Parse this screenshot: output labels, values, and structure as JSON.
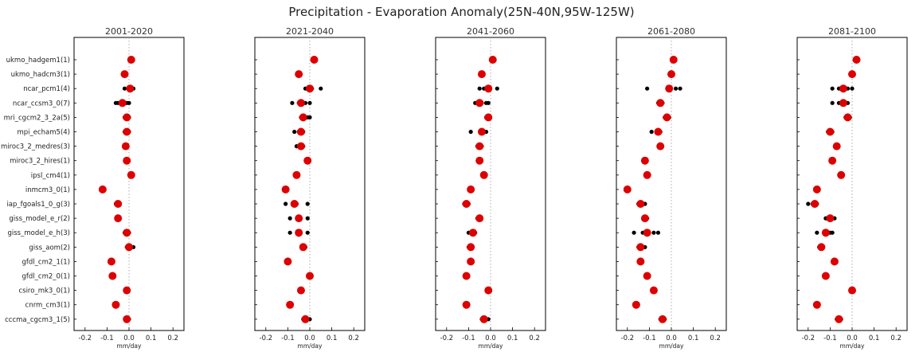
{
  "chart_data": {
    "type": "scatter",
    "title": "Precipitation - Evaporation Anomaly(25N-40N,95W-125W)",
    "xlabel": "mm/day",
    "xlim": [
      -0.25,
      0.25
    ],
    "xticks": [
      -0.2,
      -0.1,
      0.0,
      0.1,
      0.2
    ],
    "xtick_labels": [
      "-0.2",
      "-0.1",
      "0.0",
      "0.1",
      "0.2"
    ],
    "reference_line": 0,
    "models": [
      "ukmo_hadgem1(1)",
      "ukmo_hadcm3(1)",
      "ncar_pcm1(4)",
      "ncar_ccsm3_0(7)",
      "mri_cgcm2_3_2a(5)",
      "mpi_echam5(4)",
      "miroc3_2_medres(3)",
      "miroc3_2_hires(1)",
      "ipsl_cm4(1)",
      "inmcm3_0(1)",
      "iap_fgoals1_0_g(3)",
      "giss_model_e_r(2)",
      "giss_model_e_h(3)",
      "giss_aom(2)",
      "gfdl_cm2_1(1)",
      "gfdl_cm2_0(1)",
      "csiro_mk3_0(1)",
      "cnrm_cm3(1)",
      "cccma_cgcm3_1(5)"
    ],
    "colors": {
      "ensemble_mean": "#dd0000",
      "members": "#000000",
      "reference_line": "#999999"
    },
    "panels": [
      {
        "period": "2001-2020",
        "mean": [
          0.01,
          -0.02,
          0.005,
          -0.03,
          -0.01,
          -0.01,
          -0.015,
          -0.01,
          0.01,
          -0.12,
          -0.05,
          -0.05,
          -0.01,
          0.0,
          -0.08,
          -0.075,
          -0.01,
          -0.06,
          -0.01
        ],
        "members": [
          [],
          [],
          [
            -0.02,
            0.0,
            0.01,
            0.02
          ],
          [
            -0.06,
            -0.05,
            -0.04,
            -0.03,
            -0.02,
            -0.01,
            0.0
          ],
          [
            -0.02,
            -0.015,
            -0.01,
            -0.005,
            0.0
          ],
          [
            -0.02,
            -0.015,
            -0.01,
            0.0
          ],
          [
            -0.02,
            -0.015,
            -0.01
          ],
          [],
          [],
          [],
          [
            -0.06,
            -0.05,
            -0.045
          ],
          [
            -0.055,
            -0.045
          ],
          [
            -0.02,
            -0.01,
            0.0
          ],
          [
            -0.01,
            0.02
          ],
          [],
          [],
          [],
          [],
          [
            -0.015,
            -0.01,
            -0.008,
            -0.005,
            0.0
          ]
        ]
      },
      {
        "period": "2021-2040",
        "mean": [
          0.02,
          -0.05,
          0.0,
          -0.04,
          -0.03,
          -0.04,
          -0.04,
          -0.01,
          -0.06,
          -0.11,
          -0.07,
          -0.05,
          -0.05,
          -0.03,
          -0.1,
          0.0,
          -0.04,
          -0.09,
          -0.02
        ],
        "members": [
          [],
          [],
          [
            -0.02,
            0.0,
            0.01,
            0.05
          ],
          [
            -0.08,
            -0.05,
            -0.04,
            -0.02,
            0.0
          ],
          [
            -0.04,
            -0.03,
            -0.02,
            -0.01,
            0.0
          ],
          [
            -0.07,
            -0.05,
            -0.04,
            -0.03
          ],
          [
            -0.06,
            -0.05,
            -0.04,
            -0.03
          ],
          [],
          [],
          [],
          [
            -0.11,
            -0.06,
            -0.01
          ],
          [
            -0.09,
            -0.05,
            -0.01
          ],
          [
            -0.09,
            -0.05,
            -0.01
          ],
          [
            -0.03,
            -0.02
          ],
          [],
          [],
          [],
          [],
          [
            -0.03,
            -0.02,
            -0.015,
            -0.01,
            0.0
          ]
        ]
      },
      {
        "period": "2041-2060",
        "mean": [
          0.01,
          -0.04,
          -0.01,
          -0.05,
          -0.01,
          -0.04,
          -0.05,
          -0.05,
          -0.03,
          -0.09,
          -0.11,
          -0.05,
          -0.08,
          -0.09,
          -0.09,
          -0.11,
          -0.01,
          -0.11,
          -0.03
        ],
        "members": [
          [],
          [],
          [
            -0.05,
            -0.03,
            -0.01,
            0.03
          ],
          [
            -0.07,
            -0.05,
            -0.04,
            -0.02,
            -0.01
          ],
          [
            -0.02,
            -0.01,
            -0.005
          ],
          [
            -0.09,
            -0.04,
            -0.02
          ],
          [
            -0.06,
            -0.05,
            -0.04
          ],
          [],
          [],
          [],
          [
            -0.12,
            -0.11,
            -0.1
          ],
          [
            -0.06,
            -0.05
          ],
          [
            -0.1,
            -0.08,
            -0.07
          ],
          [
            -0.1,
            -0.09
          ],
          [],
          [],
          [],
          [],
          [
            -0.04,
            -0.03,
            -0.025,
            -0.02,
            -0.01
          ]
        ]
      },
      {
        "period": "2061-2080",
        "mean": [
          0.01,
          0.0,
          -0.01,
          -0.05,
          -0.02,
          -0.06,
          -0.05,
          -0.12,
          -0.11,
          -0.2,
          -0.14,
          -0.12,
          -0.11,
          -0.14,
          -0.14,
          -0.11,
          -0.08,
          -0.16,
          -0.04
        ],
        "members": [
          [],
          [],
          [
            -0.11,
            -0.01,
            0.02,
            0.04
          ],
          [
            -0.06,
            -0.05,
            -0.04
          ],
          [
            -0.03,
            -0.02,
            -0.01
          ],
          [
            -0.09,
            -0.06,
            -0.05
          ],
          [
            -0.055,
            -0.05
          ],
          [],
          [],
          [],
          [
            -0.15,
            -0.14,
            -0.12
          ],
          [
            -0.12,
            -0.11
          ],
          [
            -0.17,
            -0.13,
            -0.08,
            -0.06
          ],
          [
            -0.15,
            -0.13,
            -0.12
          ],
          [],
          [],
          [],
          [],
          [
            -0.05,
            -0.04,
            -0.035,
            -0.03
          ]
        ]
      },
      {
        "period": "2081-2100",
        "mean": [
          0.02,
          0.0,
          -0.04,
          -0.04,
          -0.02,
          -0.1,
          -0.07,
          -0.09,
          -0.05,
          -0.16,
          -0.17,
          -0.1,
          -0.12,
          -0.14,
          -0.08,
          -0.12,
          0.0,
          -0.16,
          -0.06
        ],
        "members": [
          [],
          [],
          [
            -0.09,
            -0.06,
            -0.02,
            0.0
          ],
          [
            -0.09,
            -0.06,
            -0.04,
            -0.02
          ],
          [
            -0.03,
            -0.02,
            -0.01
          ],
          [
            -0.11,
            -0.1,
            -0.09
          ],
          [
            -0.075,
            -0.07
          ],
          [],
          [],
          [],
          [
            -0.2,
            -0.18,
            -0.16
          ],
          [
            -0.12,
            -0.1,
            -0.08
          ],
          [
            -0.16,
            -0.12,
            -0.1,
            -0.09
          ],
          [
            -0.15,
            -0.14
          ],
          [],
          [],
          [],
          [],
          [
            -0.07,
            -0.06,
            -0.05
          ]
        ]
      }
    ]
  }
}
